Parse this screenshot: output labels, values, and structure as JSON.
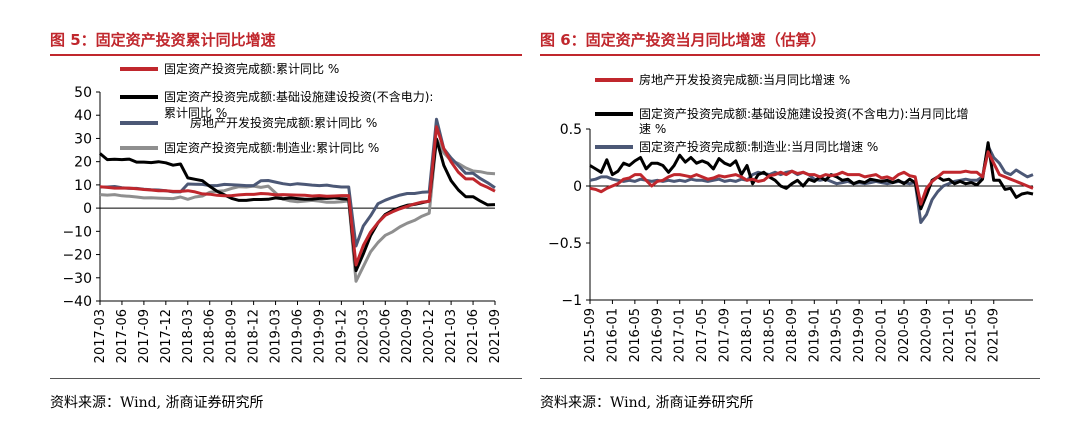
{
  "chart_data": [
    {
      "type": "line",
      "title": "图 5：固定资产投资累计同比增速",
      "source": "资料来源：Wind, 浙商证券研究所",
      "ylim": [
        -40,
        50
      ],
      "yticks": [
        "50",
        "40",
        "30",
        "20",
        "10",
        "0",
        "−10",
        "−20",
        "−30",
        "−40"
      ],
      "ytick_values": [
        50,
        40,
        30,
        20,
        10,
        0,
        -10,
        -20,
        -30,
        -40
      ],
      "xticks": [
        "2017-03",
        "2017-06",
        "2017-09",
        "2017-12",
        "2018-03",
        "2018-06",
        "2018-09",
        "2018-12",
        "2019-03",
        "2019-06",
        "2019-09",
        "2019-12",
        "2020-03",
        "2020-06",
        "2020-09",
        "2020-12",
        "2021-03",
        "2021-06",
        "2021-09"
      ],
      "x_start": "2017-03",
      "legend": [
        "固定资产投资完成额:累计同比 %",
        "固定资产投资完成额:基础设施建设投资(不含电力):",
        "累计同比 %",
        "房地产开发投资完成额:累计同比 %",
        "固定资产投资完成额:制造业:累计同比 %"
      ],
      "series": [
        {
          "name": "固定资产投资完成额:累计同比 %",
          "color": "#c0272d",
          "values": [
            9.2,
            8.9,
            8.6,
            8.6,
            8.6,
            8.3,
            8.0,
            7.8,
            7.5,
            7.5,
            7.2,
            7.2,
            7.5,
            7.0,
            6.1,
            6.0,
            5.5,
            5.3,
            5.4,
            5.7,
            5.9,
            5.9,
            6.3,
            6.1,
            5.7,
            5.8,
            5.7,
            5.6,
            5.5,
            5.2,
            5.4,
            5.1,
            5.2,
            5.4,
            5.4,
            -24.5,
            -16.1,
            -10.3,
            -6.3,
            -3.1,
            -1.6,
            -0.3,
            0.8,
            1.8,
            2.6,
            2.9,
            35.0,
            25.6,
            19.9,
            15.4,
            12.6,
            12.6,
            10.3,
            8.9,
            7.3
          ]
        },
        {
          "name": "固定资产投资完成额:基础设施建设投资(不含电力):累计同比 %",
          "color": "#000000",
          "values": [
            23.5,
            20.9,
            21.0,
            20.9,
            21.1,
            19.8,
            19.8,
            19.6,
            20.0,
            19.5,
            18.5,
            19.0,
            13.0,
            12.4,
            11.8,
            9.4,
            7.3,
            5.7,
            4.2,
            3.3,
            3.3,
            3.7,
            3.7,
            3.8,
            4.4,
            4.0,
            4.4,
            4.1,
            3.8,
            3.8,
            4.2,
            4.2,
            4.5,
            4.0,
            3.8,
            -26.9,
            -19.7,
            -11.8,
            -6.3,
            -2.7,
            -1.0,
            0.2,
            1.2,
            1.6,
            2.3,
            3.0,
            29.7,
            18.4,
            11.8,
            7.8,
            4.9,
            4.9,
            3.0,
            1.4,
            1.5
          ]
        },
        {
          "name": "房地产开发投资完成额:累计同比 %",
          "color": "#4c5876",
          "values": [
            9.1,
            9.1,
            9.3,
            8.8,
            8.5,
            8.5,
            8.1,
            7.9,
            7.8,
            7.5,
            7.0,
            7.0,
            10.4,
            10.3,
            10.2,
            9.7,
            9.7,
            10.2,
            10.1,
            9.9,
            9.7,
            9.7,
            11.8,
            11.9,
            11.2,
            10.5,
            10.1,
            10.5,
            10.2,
            9.9,
            9.7,
            9.9,
            9.4,
            9.1,
            9.1,
            -16.3,
            -7.7,
            -3.3,
            1.9,
            3.4,
            4.6,
            5.6,
            6.3,
            6.3,
            6.8,
            7.0,
            38.3,
            25.6,
            21.6,
            18.3,
            15.0,
            15.0,
            12.7,
            10.9,
            8.8
          ]
        },
        {
          "name": "固定资产投资完成额:制造业:累计同比 %",
          "color": "#8f8f8f",
          "values": [
            5.8,
            5.6,
            5.8,
            5.3,
            5.1,
            4.8,
            4.4,
            4.5,
            4.3,
            4.2,
            4.1,
            4.8,
            3.8,
            4.8,
            5.2,
            6.8,
            7.3,
            7.5,
            8.5,
            9.2,
            9.1,
            9.5,
            8.9,
            9.5,
            6.5,
            3.9,
            3.1,
            2.7,
            3.0,
            3.3,
            3.0,
            2.5,
            2.5,
            2.7,
            3.1,
            -31.5,
            -25.2,
            -18.8,
            -14.8,
            -11.7,
            -10.2,
            -8.1,
            -6.5,
            -5.3,
            -3.5,
            -2.2,
            29.8,
            23.8,
            20.4,
            19.2,
            17.3,
            16.0,
            15.7,
            15.0,
            14.8
          ]
        }
      ]
    },
    {
      "type": "line",
      "title": "图 6：固定资产投资当月同比增速（估算）",
      "source": "资料来源：Wind, 浙商证券研究所",
      "ylim": [
        -1,
        0.5
      ],
      "yticks": [
        "0.5",
        "0",
        "−0.5",
        "−1"
      ],
      "ytick_values": [
        0.5,
        0,
        -0.5,
        -1
      ],
      "xticks": [
        "2015-09",
        "2016-01",
        "2016-05",
        "2016-09",
        "2017-01",
        "2017-05",
        "2017-09",
        "2018-01",
        "2018-05",
        "2018-09",
        "2019-01",
        "2019-05",
        "2019-09",
        "2020-01",
        "2020-05",
        "2020-09",
        "2021-01",
        "2021-05",
        "2021-09"
      ],
      "x_start": "2015-09",
      "legend": [
        "房地产开发投资完成额:当月同比增速 %",
        "固定资产投资完成额:基础设施建设投资(不含电力):当月同比增",
        "速 %",
        "固定资产投资完成额:制造业:当月同比增速 %"
      ],
      "series": [
        {
          "name": "房地产开发投资完成额:当月同比增速 %",
          "color": "#c0272d",
          "values": [
            -0.02,
            -0.03,
            -0.05,
            -0.02,
            0.0,
            0.02,
            0.06,
            0.07,
            0.1,
            0.1,
            0.05,
            0.0,
            0.04,
            0.05,
            0.08,
            0.1,
            0.1,
            0.09,
            0.08,
            0.1,
            0.08,
            0.06,
            0.07,
            0.09,
            0.08,
            0.09,
            0.1,
            0.08,
            0.05,
            0.06,
            0.04,
            0.05,
            0.09,
            0.1,
            0.12,
            0.1,
            0.13,
            0.11,
            0.12,
            0.1,
            0.1,
            0.08,
            0.1,
            0.09,
            0.1,
            0.12,
            0.1,
            0.1,
            0.1,
            0.08,
            0.09,
            0.1,
            0.07,
            0.08,
            0.06,
            0.1,
            0.12,
            0.09,
            0.08,
            -0.16,
            -0.02,
            0.04,
            0.08,
            0.12,
            0.12,
            0.12,
            0.12,
            0.13,
            0.12,
            0.12,
            0.08,
            0.3,
            0.2,
            0.1,
            0.08,
            0.06,
            0.04,
            0.02,
            0.0,
            -0.02
          ]
        },
        {
          "name": "固定资产投资完成额:基础设施建设投资(不含电力):当月同比增速 %",
          "color": "#000000",
          "values": [
            0.18,
            0.15,
            0.12,
            0.23,
            0.1,
            0.13,
            0.2,
            0.18,
            0.22,
            0.25,
            0.15,
            0.2,
            0.2,
            0.18,
            0.12,
            0.18,
            0.27,
            0.21,
            0.25,
            0.2,
            0.22,
            0.2,
            0.15,
            0.24,
            0.2,
            0.18,
            0.22,
            0.1,
            0.18,
            0.02,
            0.1,
            0.12,
            0.08,
            0.05,
            0.0,
            -0.02,
            0.02,
            0.05,
            0.0,
            0.06,
            0.04,
            0.08,
            0.05,
            0.1,
            0.08,
            0.05,
            0.06,
            0.02,
            0.04,
            0.03,
            0.06,
            0.05,
            0.04,
            0.05,
            0.03,
            0.05,
            0.02,
            0.06,
            0.03,
            -0.2,
            -0.08,
            0.05,
            0.08,
            0.05,
            0.06,
            0.02,
            0.04,
            0.02,
            0.03,
            0.01,
            0.06,
            0.38,
            0.05,
            0.05,
            -0.03,
            -0.02,
            -0.1,
            -0.07,
            -0.06,
            -0.07
          ]
        },
        {
          "name": "固定资产投资完成额:制造业:当月同比增速 %",
          "color": "#4c5876",
          "values": [
            0.05,
            0.06,
            0.08,
            0.08,
            0.06,
            0.05,
            0.04,
            0.05,
            0.04,
            0.06,
            0.05,
            0.04,
            0.05,
            0.04,
            0.05,
            0.04,
            0.05,
            0.04,
            0.06,
            0.05,
            0.05,
            0.04,
            0.05,
            0.06,
            0.04,
            0.05,
            0.04,
            0.06,
            0.05,
            0.1,
            0.12,
            0.11,
            0.1,
            0.12,
            0.1,
            0.12,
            0.13,
            0.1,
            0.12,
            0.1,
            0.06,
            0.05,
            0.06,
            0.04,
            0.02,
            0.03,
            0.04,
            0.02,
            0.03,
            0.02,
            0.03,
            0.04,
            0.03,
            0.02,
            0.03,
            0.04,
            0.03,
            0.02,
            0.03,
            -0.32,
            -0.25,
            -0.12,
            -0.05,
            0.0,
            0.02,
            0.04,
            0.05,
            0.06,
            0.05,
            0.05,
            0.08,
            0.35,
            0.25,
            0.2,
            0.12,
            0.1,
            0.14,
            0.11,
            0.08,
            0.1
          ]
        }
      ]
    }
  ]
}
